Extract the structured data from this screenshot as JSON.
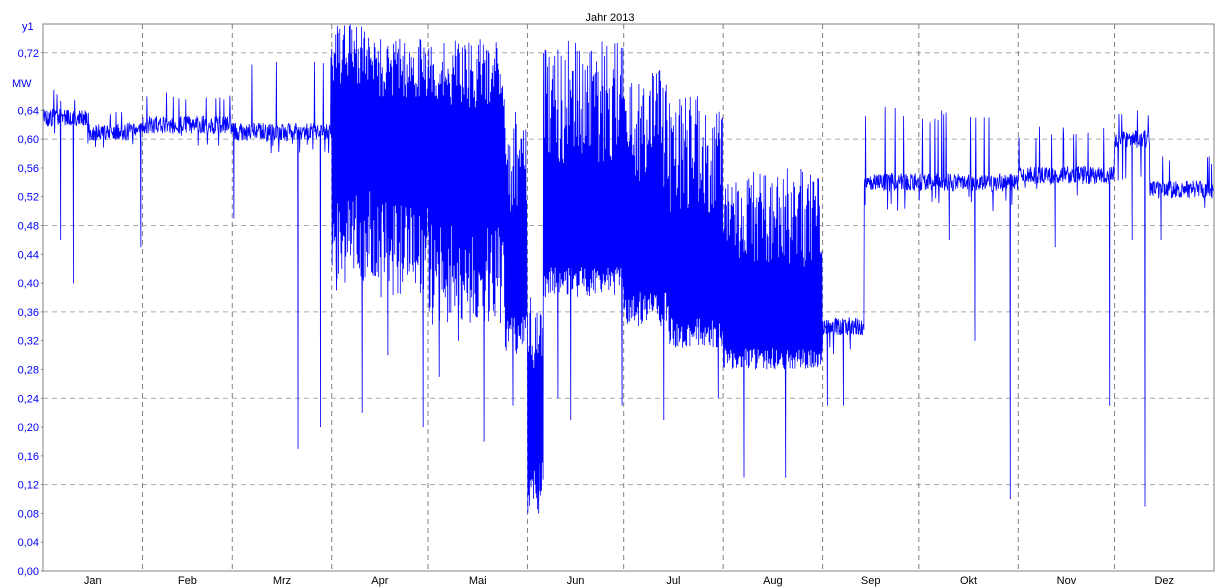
{
  "chart_data": {
    "type": "line",
    "title": "Jahr 2013",
    "y_axis_name": "y1",
    "y_unit": "MW",
    "ylim": [
      0,
      0.76
    ],
    "y_ticks": [
      "0,00",
      "0,04",
      "0,08",
      "0,12",
      "0,16",
      "0,20",
      "0,24",
      "0,28",
      "0,32",
      "0,36",
      "0,40",
      "0,44",
      "0,48",
      "0,52",
      "0,56",
      "0,60",
      "0,64",
      "0,72"
    ],
    "y_tick_values": [
      0,
      0.04,
      0.08,
      0.12,
      0.16,
      0.2,
      0.24,
      0.28,
      0.32,
      0.36,
      0.4,
      0.44,
      0.48,
      0.52,
      0.56,
      0.6,
      0.64,
      0.72
    ],
    "gridlines": [
      0.12,
      0.24,
      0.36,
      0.48,
      0.6,
      0.72
    ],
    "x_range_days": [
      0,
      365
    ],
    "months": [
      "Jan",
      "Feb",
      "Mrz",
      "Apr",
      "Mai",
      "Jun",
      "Jul",
      "Aug",
      "Sep",
      "Okt",
      "Nov",
      "Dez"
    ],
    "month_lengths": [
      31,
      28,
      31,
      30,
      31,
      30,
      31,
      31,
      30,
      31,
      30,
      31
    ],
    "grid": true,
    "colors": {
      "series": "#0000ff",
      "axis_text": "#0000ff",
      "grid": "#aaaaaa"
    },
    "series": [
      {
        "segments": [
          {
            "from": "01-01",
            "to": "01-15",
            "base": 0.63,
            "lo": 0.6,
            "hi": 0.67
          },
          {
            "from": "01-15",
            "to": "01-31",
            "base": 0.61,
            "lo": 0.58,
            "hi": 0.64
          },
          {
            "from": "02-01",
            "to": "02-28",
            "base": 0.62,
            "lo": 0.59,
            "hi": 0.67
          },
          {
            "from": "03-01",
            "to": "03-31",
            "base": 0.61,
            "lo": 0.58,
            "hi": 0.72
          },
          {
            "from": "04-01",
            "to": "04-15",
            "base": 0.62,
            "lo": 0.4,
            "hi": 0.76
          },
          {
            "from": "04-15",
            "to": "04-30",
            "base": 0.6,
            "lo": 0.38,
            "hi": 0.74
          },
          {
            "from": "05-01",
            "to": "05-25",
            "base": 0.58,
            "lo": 0.34,
            "hi": 0.74
          },
          {
            "from": "05-25",
            "to": "06-01",
            "base": 0.4,
            "lo": 0.3,
            "hi": 0.64
          },
          {
            "from": "06-01",
            "to": "06-06",
            "base": 0.2,
            "lo": 0.08,
            "hi": 0.4
          },
          {
            "from": "06-06",
            "to": "06-30",
            "base": 0.45,
            "lo": 0.38,
            "hi": 0.74
          },
          {
            "from": "07-01",
            "to": "07-15",
            "base": 0.42,
            "lo": 0.34,
            "hi": 0.7
          },
          {
            "from": "07-15",
            "to": "07-31",
            "base": 0.38,
            "lo": 0.31,
            "hi": 0.66
          },
          {
            "from": "08-01",
            "to": "08-31",
            "base": 0.33,
            "lo": 0.28,
            "hi": 0.56
          },
          {
            "from": "09-01",
            "to": "09-14",
            "base": 0.34,
            "lo": 0.3,
            "hi": 0.44
          },
          {
            "from": "09-14",
            "to": "09-30",
            "base": 0.54,
            "lo": 0.5,
            "hi": 0.65
          },
          {
            "from": "10-01",
            "to": "10-31",
            "base": 0.54,
            "lo": 0.5,
            "hi": 0.64
          },
          {
            "from": "11-01",
            "to": "11-30",
            "base": 0.55,
            "lo": 0.52,
            "hi": 0.62
          },
          {
            "from": "12-01",
            "to": "12-12",
            "base": 0.6,
            "lo": 0.54,
            "hi": 0.64
          },
          {
            "from": "12-12",
            "to": "12-31",
            "base": 0.53,
            "lo": 0.5,
            "hi": 0.58
          }
        ],
        "dips": [
          {
            "date": "01-06",
            "value": 0.46
          },
          {
            "date": "01-10",
            "value": 0.4
          },
          {
            "date": "01-31",
            "value": 0.45
          },
          {
            "date": "03-01",
            "value": 0.49
          },
          {
            "date": "03-21",
            "value": 0.17
          },
          {
            "date": "03-28",
            "value": 0.2
          },
          {
            "date": "04-02",
            "value": 0.39
          },
          {
            "date": "04-10",
            "value": 0.22
          },
          {
            "date": "04-18",
            "value": 0.3
          },
          {
            "date": "04-29",
            "value": 0.2
          },
          {
            "date": "05-04",
            "value": 0.27
          },
          {
            "date": "05-10",
            "value": 0.32
          },
          {
            "date": "05-18",
            "value": 0.18
          },
          {
            "date": "05-27",
            "value": 0.23
          },
          {
            "date": "06-04",
            "value": 0.08
          },
          {
            "date": "06-10",
            "value": 0.24
          },
          {
            "date": "06-14",
            "value": 0.21
          },
          {
            "date": "06-30",
            "value": 0.23
          },
          {
            "date": "07-13",
            "value": 0.21
          },
          {
            "date": "07-30",
            "value": 0.24
          },
          {
            "date": "08-07",
            "value": 0.13
          },
          {
            "date": "08-20",
            "value": 0.13
          },
          {
            "date": "09-02",
            "value": 0.23
          },
          {
            "date": "09-07",
            "value": 0.23
          },
          {
            "date": "10-10",
            "value": 0.46
          },
          {
            "date": "10-18",
            "value": 0.32
          },
          {
            "date": "10-29",
            "value": 0.1
          },
          {
            "date": "11-12",
            "value": 0.45
          },
          {
            "date": "11-29",
            "value": 0.23
          },
          {
            "date": "12-06",
            "value": 0.46
          },
          {
            "date": "12-10",
            "value": 0.09
          },
          {
            "date": "12-15",
            "value": 0.46
          }
        ]
      }
    ]
  }
}
